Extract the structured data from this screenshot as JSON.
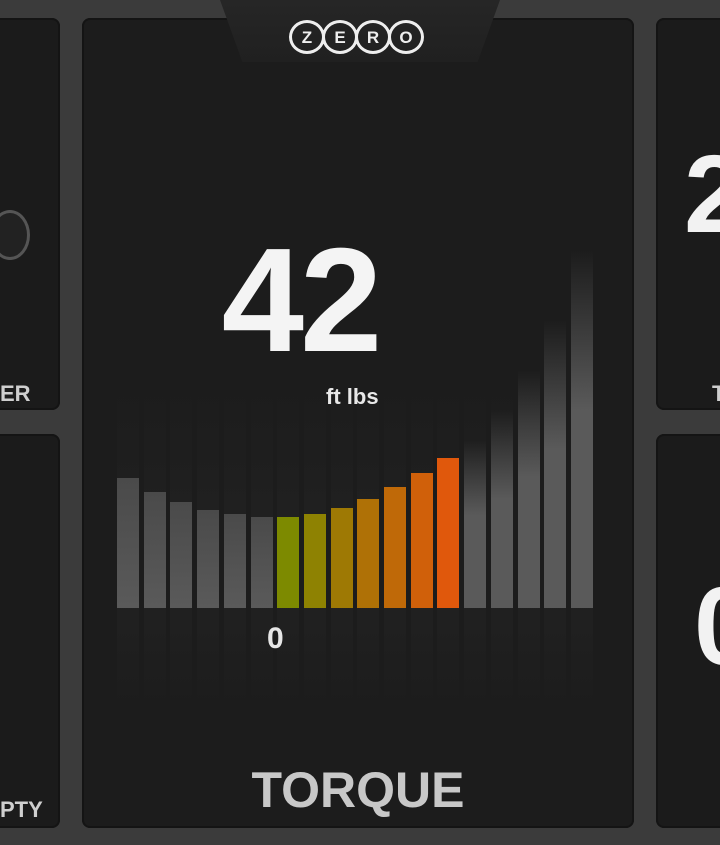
{
  "left_panels": {
    "top_label": "ER",
    "bottom_label": "PTY"
  },
  "right_panels": {
    "top_value": "2",
    "top_label": "T",
    "bottom_value": "0"
  },
  "header": {
    "logo_text": "ZERO"
  },
  "torque": {
    "value": "42",
    "unit": "ft lbs",
    "title": "TORQUE",
    "zero_label": "0",
    "segments_total": 18,
    "zero_segment_index": 6,
    "lit_segments": 7,
    "colors": {
      "low": "#7d8a00",
      "high": "#e0580c",
      "unlit": "#5a5a5a"
    }
  }
}
